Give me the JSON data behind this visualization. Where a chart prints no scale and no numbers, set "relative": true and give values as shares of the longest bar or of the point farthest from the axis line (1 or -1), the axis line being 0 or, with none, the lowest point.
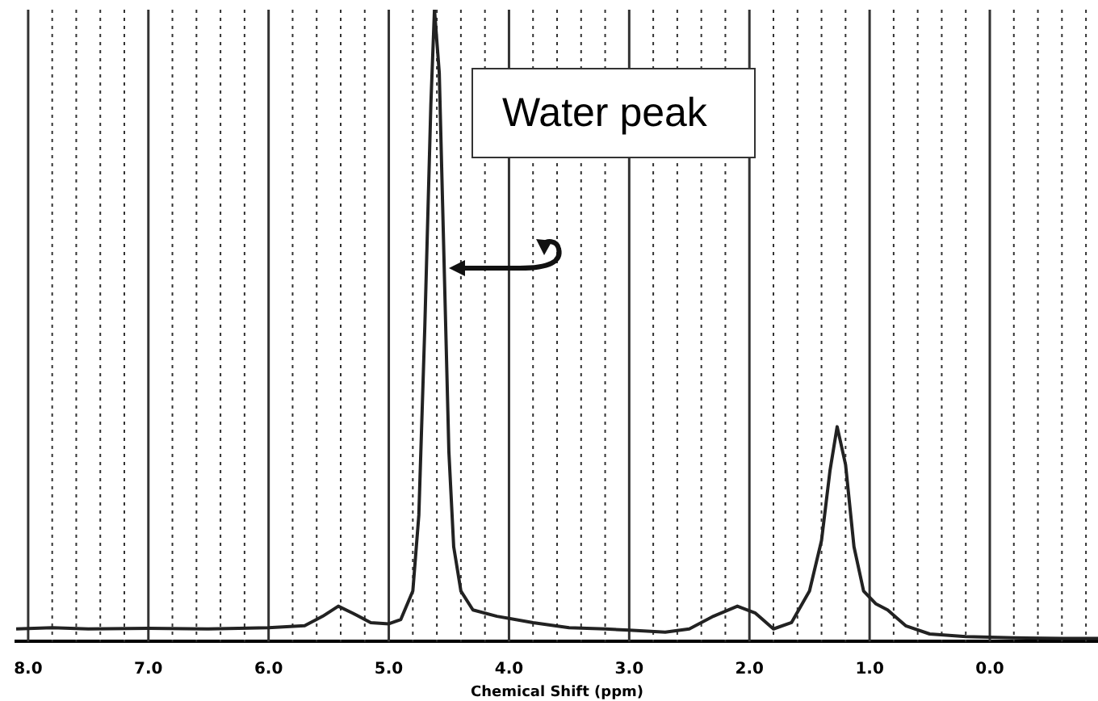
{
  "chart_data": {
    "type": "line",
    "relative": true,
    "xlabel": "Chemical Shift (ppm)",
    "annotations": [
      "Water peak"
    ],
    "xlim": [
      8.1,
      -0.9
    ],
    "xticks": [
      {
        "value": 8,
        "label": "8.0"
      },
      {
        "value": 7.8,
        "label": null
      },
      {
        "value": 7.6,
        "label": null
      },
      {
        "value": 7.4,
        "label": null
      },
      {
        "value": 7.2,
        "label": null
      },
      {
        "value": 7,
        "label": "7.0"
      },
      {
        "value": 6.8,
        "label": null
      },
      {
        "value": 6.6,
        "label": null
      },
      {
        "value": 6.4,
        "label": null
      },
      {
        "value": 6.2,
        "label": null
      },
      {
        "value": 6,
        "label": "6.0"
      },
      {
        "value": 5.8,
        "label": null
      },
      {
        "value": 5.6,
        "label": null
      },
      {
        "value": 5.4,
        "label": null
      },
      {
        "value": 5.2,
        "label": null
      },
      {
        "value": 5,
        "label": "5.0"
      },
      {
        "value": 4.8,
        "label": null
      },
      {
        "value": 4.6,
        "label": null
      },
      {
        "value": 4.4,
        "label": null
      },
      {
        "value": 4.2,
        "label": null
      },
      {
        "value": 4,
        "label": "4.0"
      },
      {
        "value": 3.8,
        "label": null
      },
      {
        "value": 3.6,
        "label": null
      },
      {
        "value": 3.4,
        "label": null
      },
      {
        "value": 3.2,
        "label": null
      },
      {
        "value": 3,
        "label": "3.0"
      },
      {
        "value": 2.8,
        "label": null
      },
      {
        "value": 2.6,
        "label": null
      },
      {
        "value": 2.4,
        "label": null
      },
      {
        "value": 2.2,
        "label": null
      },
      {
        "value": 2,
        "label": "2.0"
      },
      {
        "value": 1.8,
        "label": null
      },
      {
        "value": 1.6,
        "label": null
      },
      {
        "value": 1.4,
        "label": null
      },
      {
        "value": 1.2,
        "label": null
      },
      {
        "value": 1,
        "label": "1.0"
      },
      {
        "value": 0.8,
        "label": null
      },
      {
        "value": 0.6,
        "label": null
      },
      {
        "value": 0.4,
        "label": null
      },
      {
        "value": 0.2,
        "label": null
      },
      {
        "value": 0,
        "label": "0.0"
      },
      {
        "value": -0.2,
        "label": null
      },
      {
        "value": -0.4,
        "label": null
      },
      {
        "value": -0.6,
        "label": null
      },
      {
        "value": -0.8,
        "label": null
      }
    ],
    "grid": "x",
    "marker": "none",
    "x": [
      8.1,
      7.8,
      7.5,
      7.0,
      6.5,
      6.0,
      5.7,
      5.55,
      5.42,
      5.3,
      5.15,
      5.0,
      4.9,
      4.8,
      4.75,
      4.7,
      4.65,
      4.62,
      4.58,
      4.54,
      4.5,
      4.46,
      4.4,
      4.3,
      4.1,
      3.8,
      3.5,
      3.2,
      3.0,
      2.7,
      2.5,
      2.3,
      2.1,
      1.95,
      1.8,
      1.65,
      1.5,
      1.4,
      1.33,
      1.27,
      1.2,
      1.13,
      1.05,
      0.95,
      0.85,
      0.7,
      0.5,
      0.2,
      -0.2,
      -0.6,
      -0.9
    ],
    "series": [
      {
        "color": "#222222",
        "values": [
          0.02,
          0.022,
          0.02,
          0.021,
          0.02,
          0.022,
          0.025,
          0.04,
          0.056,
          0.045,
          0.03,
          0.028,
          0.035,
          0.08,
          0.2,
          0.5,
          0.85,
          1.0,
          0.9,
          0.6,
          0.3,
          0.15,
          0.08,
          0.05,
          0.04,
          0.03,
          0.022,
          0.02,
          0.018,
          0.015,
          0.02,
          0.04,
          0.056,
          0.045,
          0.02,
          0.03,
          0.08,
          0.16,
          0.27,
          0.34,
          0.28,
          0.15,
          0.08,
          0.06,
          0.05,
          0.025,
          0.012,
          0.008,
          0.006,
          0.005,
          0.005
        ]
      }
    ]
  }
}
